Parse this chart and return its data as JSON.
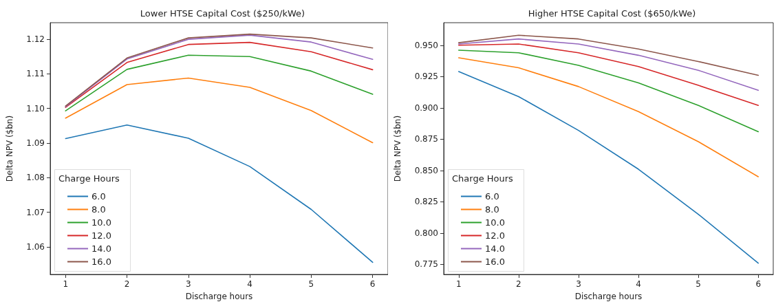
{
  "chart_data": [
    {
      "type": "line",
      "title": "Lower HTSE Capital Cost ($250/kWe)",
      "xlabel": "Discharge hours",
      "ylabel": "Delta NPV ($bn)",
      "legend_title": "Charge Hours",
      "legend": "bottom left",
      "grid": false,
      "marker": "none",
      "line_style": "solid",
      "x": [
        1,
        2,
        3,
        4,
        5,
        6
      ],
      "xlim": [
        0.75,
        6.25
      ],
      "xticks": [
        1,
        2,
        3,
        4,
        5,
        6
      ],
      "ylim": [
        1.052,
        1.1248
      ],
      "yticks": [
        {
          "value": 1.06,
          "label": "1.06"
        },
        {
          "value": 1.07,
          "label": "1.07"
        },
        {
          "value": 1.08,
          "label": "1.08"
        },
        {
          "value": 1.09,
          "label": "1.09"
        },
        {
          "value": 1.1,
          "label": "1.10"
        },
        {
          "value": 1.11,
          "label": "1.11"
        },
        {
          "value": 1.12,
          "label": "1.12"
        }
      ],
      "series": [
        {
          "name": "6.0",
          "color": "#1f77b4",
          "values": [
            1.0913,
            1.0952,
            1.0914,
            1.0832,
            1.0708,
            1.0555
          ]
        },
        {
          "name": "8.0",
          "color": "#ff7f0e",
          "values": [
            1.0972,
            1.1069,
            1.1088,
            1.1061,
            1.0994,
            1.0901
          ]
        },
        {
          "name": "10.0",
          "color": "#2ca02c",
          "values": [
            1.0993,
            1.1113,
            1.1154,
            1.115,
            1.1108,
            1.1041
          ]
        },
        {
          "name": "12.0",
          "color": "#d62728",
          "values": [
            1.1003,
            1.1133,
            1.1185,
            1.1191,
            1.1164,
            1.1112
          ]
        },
        {
          "name": "14.0",
          "color": "#9467bd",
          "values": [
            1.1005,
            1.1143,
            1.12,
            1.1212,
            1.1192,
            1.1142
          ]
        },
        {
          "name": "16.0",
          "color": "#8c564b",
          "values": [
            1.1007,
            1.1146,
            1.1204,
            1.1215,
            1.1204,
            1.1175
          ]
        }
      ]
    },
    {
      "type": "line",
      "title": "Higher HTSE Capital Cost ($650/kWe)",
      "xlabel": "Discharge hours",
      "ylabel": "Delta NPV ($bn)",
      "legend_title": "Charge Hours",
      "legend": "bottom left",
      "grid": false,
      "marker": "none",
      "line_style": "solid",
      "x": [
        1,
        2,
        3,
        4,
        5,
        6
      ],
      "xlim": [
        0.75,
        6.25
      ],
      "xticks": [
        1,
        2,
        3,
        4,
        5,
        6
      ],
      "ylim": [
        0.767,
        0.968
      ],
      "yticks": [
        {
          "value": 0.775,
          "label": "0.775"
        },
        {
          "value": 0.8,
          "label": "0.800"
        },
        {
          "value": 0.825,
          "label": "0.825"
        },
        {
          "value": 0.85,
          "label": "0.850"
        },
        {
          "value": 0.875,
          "label": "0.875"
        },
        {
          "value": 0.9,
          "label": "0.900"
        },
        {
          "value": 0.925,
          "label": "0.925"
        },
        {
          "value": 0.95,
          "label": "0.950"
        }
      ],
      "series": [
        {
          "name": "6.0",
          "color": "#1f77b4",
          "values": [
            0.929,
            0.909,
            0.882,
            0.851,
            0.815,
            0.776
          ]
        },
        {
          "name": "8.0",
          "color": "#ff7f0e",
          "values": [
            0.94,
            0.932,
            0.917,
            0.897,
            0.873,
            0.845
          ]
        },
        {
          "name": "10.0",
          "color": "#2ca02c",
          "values": [
            0.946,
            0.944,
            0.934,
            0.92,
            0.902,
            0.881
          ]
        },
        {
          "name": "12.0",
          "color": "#d62728",
          "values": [
            0.95,
            0.951,
            0.944,
            0.933,
            0.918,
            0.902
          ]
        },
        {
          "name": "14.0",
          "color": "#9467bd",
          "values": [
            0.951,
            0.955,
            0.951,
            0.942,
            0.93,
            0.914
          ]
        },
        {
          "name": "16.0",
          "color": "#8c564b",
          "values": [
            0.952,
            0.958,
            0.955,
            0.947,
            0.937,
            0.926
          ]
        }
      ]
    }
  ]
}
